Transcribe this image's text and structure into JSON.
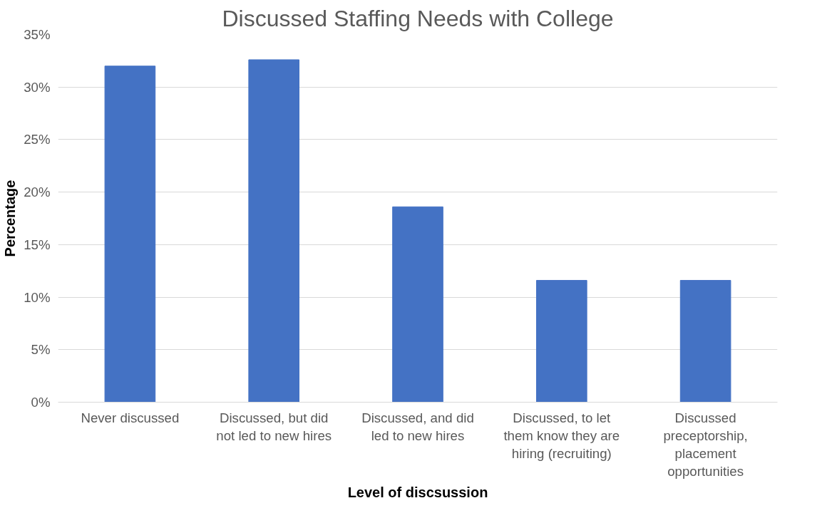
{
  "chart_data": {
    "type": "bar",
    "title": "Discussed Staffing Needs with College",
    "xlabel": "Level of discsussion",
    "ylabel": "Percentage",
    "categories": [
      "Never discussed",
      "Discussed, but did not led to new hires",
      "Discussed, and did led to new hires",
      "Discussed, to let them know they are hiring (recruiting)",
      "Discussed preceptorship, placement opportunities"
    ],
    "values": [
      32.0,
      32.6,
      18.6,
      11.6,
      11.6
    ],
    "color": "#4472c4",
    "ylim": [
      0,
      35
    ],
    "yticks": [
      {
        "value": 0,
        "label": "0%"
      },
      {
        "value": 5,
        "label": "5%"
      },
      {
        "value": 10,
        "label": "10%"
      },
      {
        "value": 15,
        "label": "15%"
      },
      {
        "value": 20,
        "label": "20%"
      },
      {
        "value": 25,
        "label": "25%"
      },
      {
        "value": 30,
        "label": "30%"
      },
      {
        "value": 35,
        "label": "35%"
      }
    ],
    "grid": "y"
  }
}
